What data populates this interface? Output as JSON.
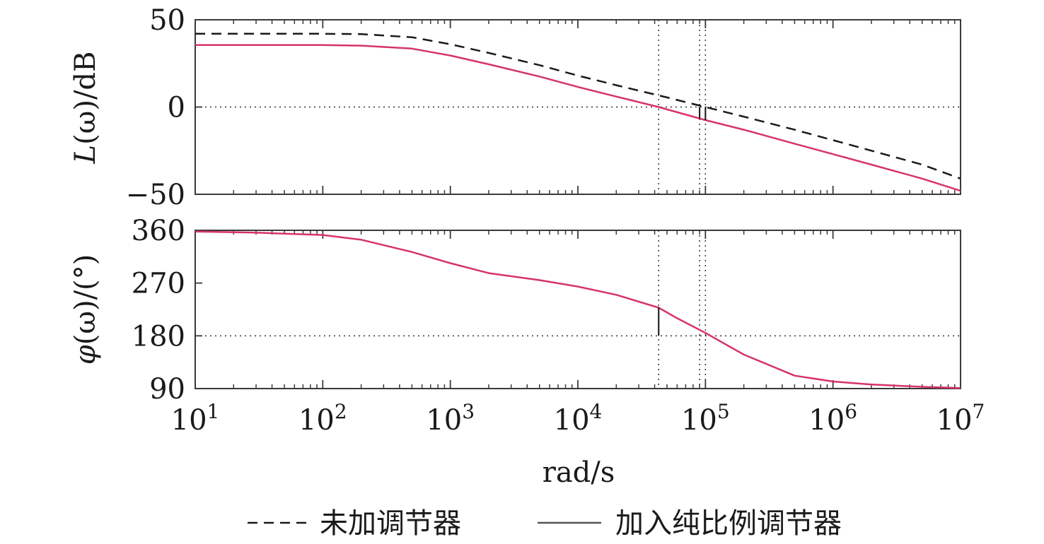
{
  "chart_data": {
    "type": "line",
    "xlabel": "rad/s",
    "x_scale": "log",
    "x_ticks": [
      {
        "value": 10,
        "base": "10",
        "exp": "1"
      },
      {
        "value": 100,
        "base": "10",
        "exp": "2"
      },
      {
        "value": 1000,
        "base": "10",
        "exp": "3"
      },
      {
        "value": 10000,
        "base": "10",
        "exp": "4"
      },
      {
        "value": 100000,
        "base": "10",
        "exp": "5"
      },
      {
        "value": 1000000,
        "base": "10",
        "exp": "6"
      },
      {
        "value": 10000000,
        "base": "10",
        "exp": "7"
      }
    ],
    "xlim": [
      10,
      10000000
    ],
    "grid": false,
    "legend_position": "bottom",
    "colors": {
      "uncompensated": "#1a1a1a",
      "compensated": "#d6336c",
      "axes": "#3a3a3a"
    },
    "legend": {
      "uncompensated": "未加调节器",
      "compensated": "加入纯比例调节器"
    },
    "magnitude": {
      "ylabel_main": "L",
      "ylabel_var": "(ω)",
      "ylabel_unit": "/dB",
      "ylim": [
        -50,
        50
      ],
      "yticks": [
        {
          "value": 50,
          "label": "50"
        },
        {
          "value": 0,
          "label": "0"
        },
        {
          "value": -50,
          "label": "−50"
        }
      ],
      "series": [
        {
          "name": "未加调节器",
          "style": "dashed",
          "x": [
            10,
            100,
            200,
            500,
            1000,
            2000,
            5000,
            10000,
            20000,
            50000,
            100000,
            200000,
            500000,
            1000000,
            2000000,
            5000000,
            10000000
          ],
          "y": [
            42,
            42,
            41.8,
            40,
            36,
            31,
            24,
            18,
            12.5,
            5.5,
            0,
            -5.5,
            -13,
            -19,
            -25,
            -33,
            -41
          ]
        },
        {
          "name": "加入纯比例调节器",
          "style": "solid",
          "x": [
            10,
            100,
            200,
            500,
            1000,
            2000,
            5000,
            10000,
            20000,
            43000,
            100000,
            200000,
            500000,
            1000000,
            2000000,
            5000000,
            10000000
          ],
          "y": [
            35.5,
            35.5,
            35.2,
            33.5,
            29.5,
            24.5,
            17.5,
            11.5,
            6,
            0,
            -7.5,
            -13,
            -21,
            -27,
            -33,
            -41,
            -48
          ]
        }
      ]
    },
    "phase": {
      "ylabel_main": "φ",
      "ylabel_var": "(ω)",
      "ylabel_unit": "/(°)",
      "ylim": [
        90,
        360
      ],
      "yticks": [
        {
          "value": 360,
          "label": "360"
        },
        {
          "value": 270,
          "label": "270"
        },
        {
          "value": 180,
          "label": "180"
        },
        {
          "value": 90,
          "label": "90"
        }
      ],
      "series": [
        {
          "name": "加入纯比例调节器",
          "style": "solid",
          "x": [
            10,
            30,
            100,
            200,
            500,
            1000,
            2000,
            5000,
            10000,
            20000,
            43000,
            60000,
            100000,
            200000,
            500000,
            1000000,
            2000000,
            5000000,
            10000000
          ],
          "y": [
            358,
            356,
            352,
            344,
            323,
            304,
            287,
            275,
            264,
            250,
            228,
            210,
            185,
            148,
            112,
            102,
            97,
            93,
            91
          ]
        }
      ]
    },
    "annotations": {
      "crossover_compensated": 43000,
      "crossover_uncompensated": 100000,
      "phase_crossover": 90000,
      "ref_magnitude": 0,
      "ref_phase": 180
    }
  }
}
